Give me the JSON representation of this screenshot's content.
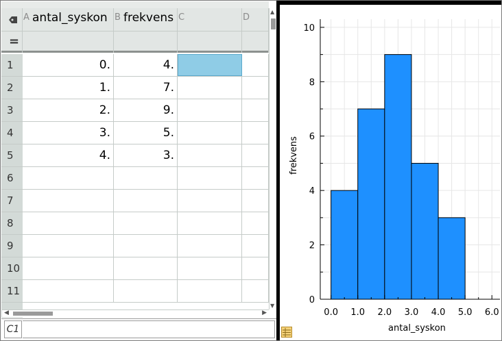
{
  "spreadsheet": {
    "columns": [
      {
        "letter": "A",
        "name": "antal_syskon"
      },
      {
        "letter": "B",
        "name": "frekvens"
      },
      {
        "letter": "C",
        "name": ""
      },
      {
        "letter": "D",
        "name": ""
      }
    ],
    "formula_symbol": "=",
    "row_numbers": [
      "1",
      "2",
      "3",
      "4",
      "5",
      "6",
      "7",
      "8",
      "9",
      "10",
      "11"
    ],
    "rows": [
      [
        "0.",
        "4.",
        "",
        ""
      ],
      [
        "1.",
        "7.",
        "",
        ""
      ],
      [
        "2.",
        "9.",
        "",
        ""
      ],
      [
        "3.",
        "5.",
        "",
        ""
      ],
      [
        "4.",
        "3.",
        "",
        ""
      ],
      [
        "",
        "",
        "",
        ""
      ],
      [
        "",
        "",
        "",
        ""
      ],
      [
        "",
        "",
        "",
        ""
      ],
      [
        "",
        "",
        "",
        ""
      ],
      [
        "",
        "",
        "",
        ""
      ],
      [
        "",
        "",
        "",
        ""
      ]
    ],
    "selected_cell": "C1",
    "selection_color": "#8fcce6"
  },
  "entry_line": {
    "cell_reference": "C1",
    "value": ""
  },
  "chart_data": {
    "type": "bar",
    "subtype": "histogram",
    "bins": [
      [
        0,
        1
      ],
      [
        1,
        2
      ],
      [
        2,
        3
      ],
      [
        3,
        4
      ],
      [
        4,
        5
      ]
    ],
    "values": [
      4,
      7,
      9,
      5,
      3
    ],
    "xlabel": "antal_syskon",
    "ylabel": "frekvens",
    "xlim": [
      -0.4,
      6.3
    ],
    "ylim": [
      0,
      10.3
    ],
    "xticks": [
      0.0,
      1.0,
      2.0,
      3.0,
      4.0,
      5.0,
      6.0
    ],
    "xtick_labels": [
      "0.0",
      "1.0",
      "2.0",
      "3.0",
      "4.0",
      "5.0",
      "6.0"
    ],
    "yticks": [
      0,
      2,
      4,
      6,
      8,
      10
    ],
    "ytick_labels": [
      "0",
      "2",
      "4",
      "6",
      "8",
      "10"
    ],
    "grid": true,
    "bar_color": "#1e90ff"
  },
  "icons": {
    "tag": "tag-icon",
    "list": "list-icon"
  }
}
